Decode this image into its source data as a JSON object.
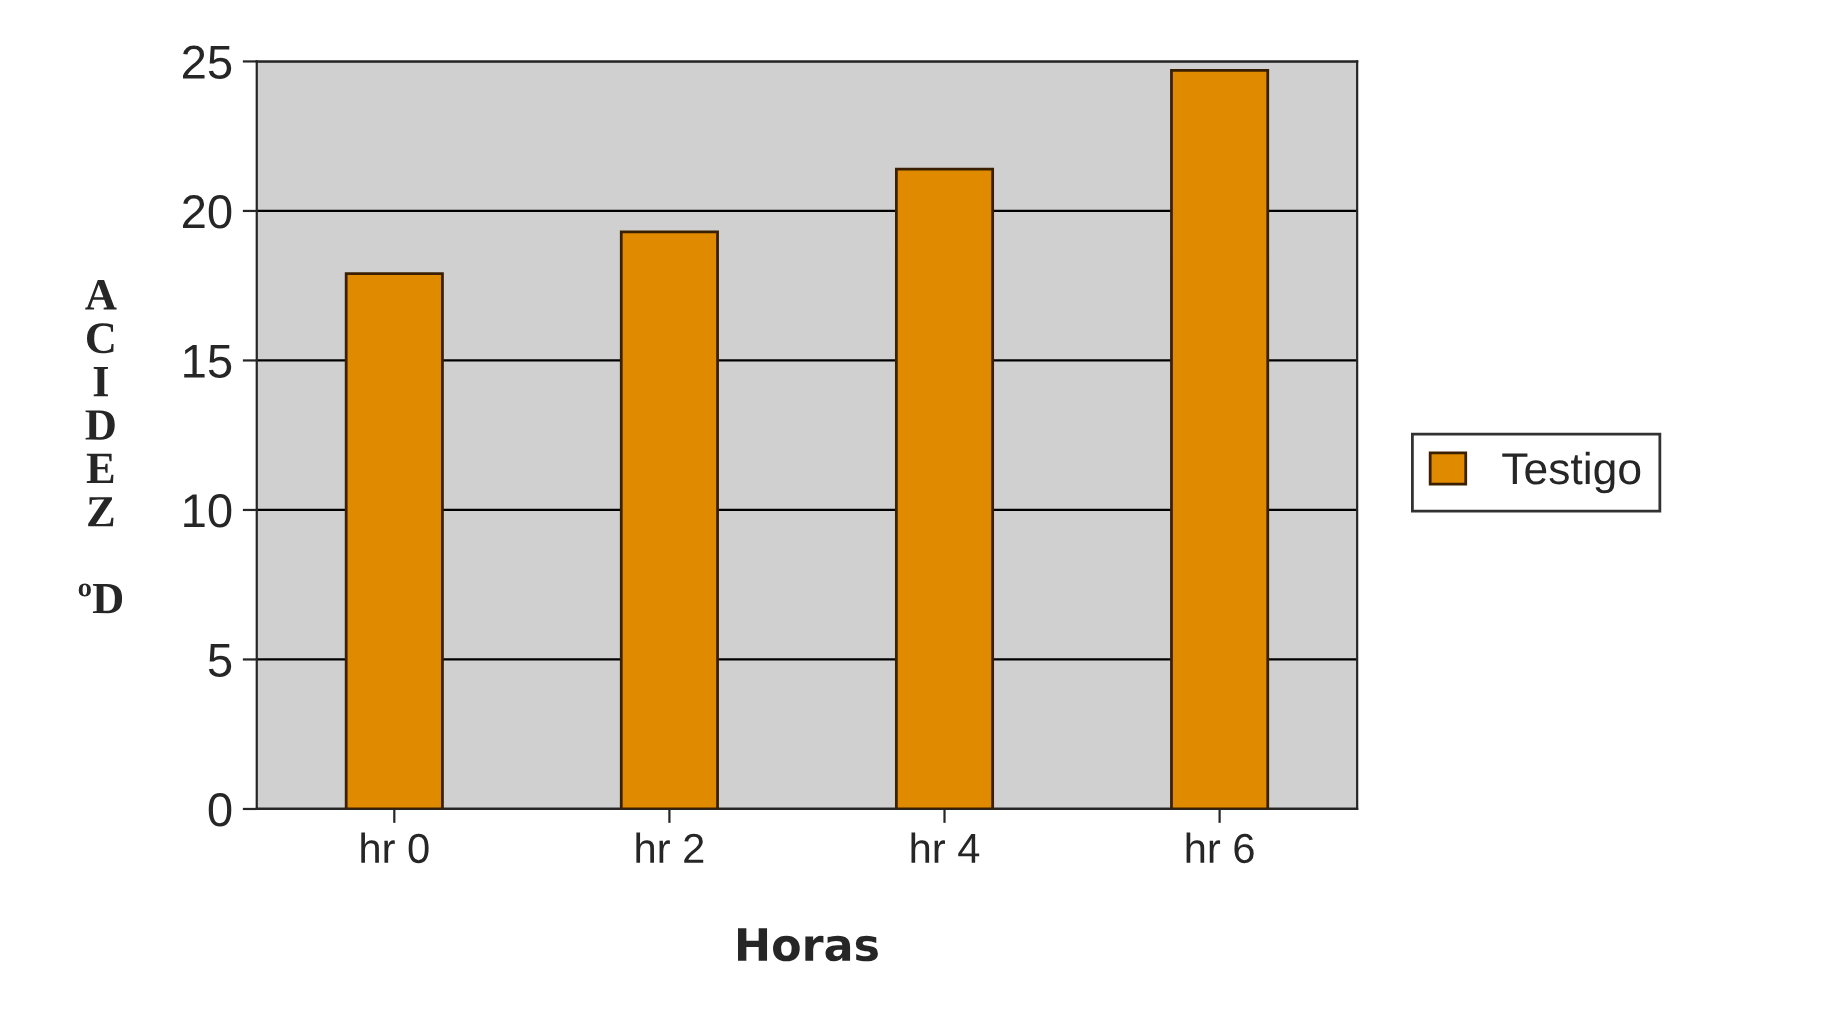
{
  "chart_data": {
    "type": "bar",
    "xlabel": "Horas",
    "ylabel": "ACIDEZ ºD",
    "categories": [
      "hr 0",
      "hr 2",
      "hr 4",
      "hr 6"
    ],
    "series": [
      {
        "name": "Testigo",
        "color": "#e08a00",
        "values": [
          17.9,
          19.3,
          21.4,
          24.7
        ]
      }
    ],
    "ylim": [
      0,
      25
    ],
    "yticks": [
      0,
      5,
      10,
      15,
      20,
      25
    ],
    "grid": "y",
    "legend": "right"
  }
}
